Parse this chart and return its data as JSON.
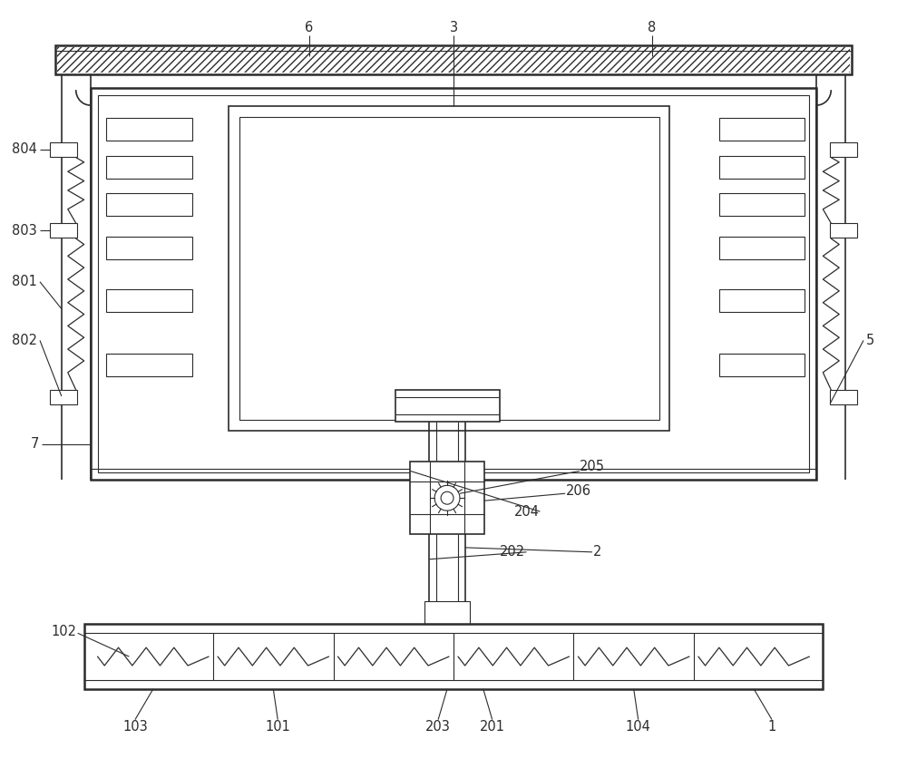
{
  "bg_color": "#ffffff",
  "line_color": "#2c2c2c",
  "figsize": [
    10.0,
    8.58
  ],
  "dpi": 100,
  "lw_thin": 0.8,
  "lw_med": 1.2,
  "lw_thick": 1.8
}
